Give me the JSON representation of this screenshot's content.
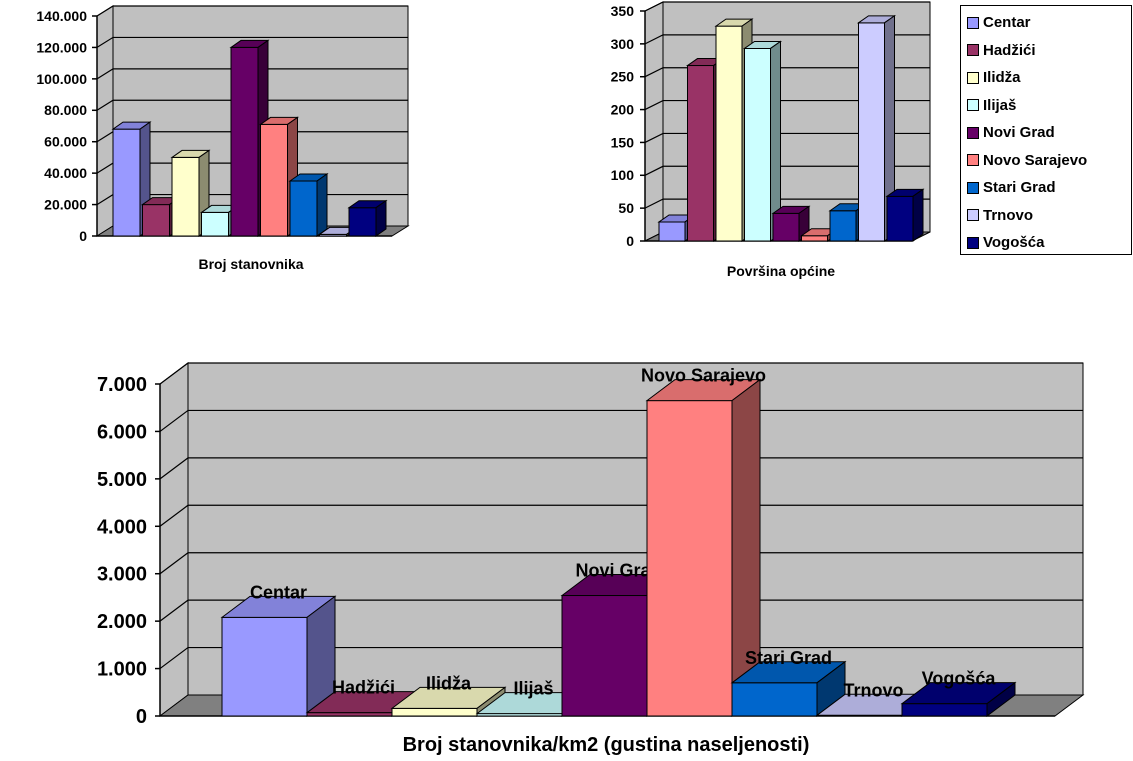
{
  "colors": {
    "Centar": "#9999ff",
    "Hadžići": "#993366",
    "Ilidža": "#ffffcc",
    "Ilijaš": "#ccffff",
    "Novi Grad": "#660066",
    "Novo Sarajevo": "#ff8080",
    "Stari Grad": "#0066cc",
    "Trnovo": "#ccccff",
    "Vogošća": "#000080",
    "wall": "#c0c0c0",
    "floor": "#808080"
  },
  "legend": {
    "placement": "right-of-top-charts",
    "items": [
      "Centar",
      "Hadžići",
      "Ilidža",
      "Ilijaš",
      "Novi Grad",
      "Novo Sarajevo",
      "Stari Grad",
      "Trnovo",
      "Vogošća"
    ]
  },
  "chart_data": [
    {
      "type": "bar",
      "style": "3d-clustered",
      "title": "Broj stanovnika",
      "categories": [
        "Centar",
        "Hadžići",
        "Ilidža",
        "Ilijaš",
        "Novi Grad",
        "Novo Sarajevo",
        "Stari Grad",
        "Trnovo",
        "Vogošća"
      ],
      "values": [
        68000,
        20000,
        50000,
        15000,
        120000,
        71000,
        35000,
        1000,
        18000
      ],
      "ylim": [
        0,
        140000
      ],
      "yticks": [
        "0",
        "20.000",
        "40.000",
        "60.000",
        "80.000",
        "100.000",
        "120.000",
        "140.000"
      ],
      "grid": true,
      "data_labels": false
    },
    {
      "type": "bar",
      "style": "3d-clustered",
      "title": "Površina općine",
      "categories": [
        "Centar",
        "Hadžići",
        "Ilidža",
        "Ilijaš",
        "Novi Grad",
        "Novo Sarajevo",
        "Stari Grad",
        "Trnovo",
        "Vogošća"
      ],
      "values": [
        29,
        267,
        327,
        293,
        42,
        8,
        46,
        332,
        68
      ],
      "ylim": [
        0,
        350
      ],
      "yticks": [
        "0",
        "50",
        "100",
        "150",
        "200",
        "250",
        "300",
        "350"
      ],
      "grid": true,
      "data_labels": false
    },
    {
      "type": "bar",
      "style": "3d-column",
      "title": "Broj stanovnika/km2 (gustina naseljenosti)",
      "categories": [
        "Centar",
        "Hadžići",
        "Ilidža",
        "Ilijaš",
        "Novi Grad",
        "Novo Sarajevo",
        "Stari Grad",
        "Trnovo",
        "Vogošća"
      ],
      "values": [
        2080,
        70,
        160,
        50,
        2540,
        6650,
        700,
        15,
        260
      ],
      "ylim": [
        0,
        7000
      ],
      "yticks": [
        "0",
        "1.000",
        "2.000",
        "3.000",
        "4.000",
        "5.000",
        "6.000",
        "7.000"
      ],
      "grid": true,
      "data_labels": true
    }
  ]
}
